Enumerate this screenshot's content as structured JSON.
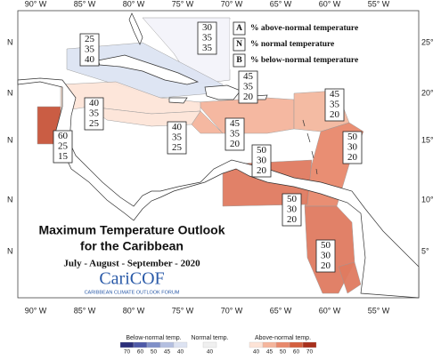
{
  "lon_labels": [
    "90° W",
    "85° W",
    "80° W",
    "75° W",
    "70° W",
    "65° W",
    "60° W",
    "55° W"
  ],
  "lat_labels": [
    "25°",
    "20°",
    "15°",
    "10°",
    "5°"
  ],
  "lat_left": "N",
  "legend": [
    {
      "key": "A",
      "text": "% above-normal temperature"
    },
    {
      "key": "N",
      "text": "% normal temperature"
    },
    {
      "key": "B",
      "text": "% below-normal temperature"
    }
  ],
  "regions": [
    {
      "values": [
        30,
        35,
        35
      ],
      "color": "#f4f4fa"
    },
    {
      "values": [
        25,
        35,
        40
      ],
      "color": "#dde4f3"
    },
    {
      "values": [
        45,
        35,
        20
      ],
      "color": "#f5b59c"
    },
    {
      "values": [
        45,
        35,
        20
      ],
      "color": "#f4b89f"
    },
    {
      "values": [
        40,
        35,
        25
      ],
      "color": "#fde5d9"
    },
    {
      "values": [
        45,
        35,
        20
      ],
      "color": "#f5b59c"
    },
    {
      "values": [
        40,
        35,
        25
      ],
      "color": "#fde5d9"
    },
    {
      "values": [
        60,
        25,
        15
      ],
      "color": "#c8553a"
    },
    {
      "values": [
        50,
        30,
        20
      ],
      "color": "#e8896c"
    },
    {
      "values": [
        50,
        30,
        20
      ],
      "color": "#e07b60"
    },
    {
      "values": [
        50,
        30,
        20
      ],
      "color": "#e07b60"
    },
    {
      "values": [
        50,
        30,
        20
      ],
      "color": "#e07b60"
    }
  ],
  "title": [
    "Maximum Temperature Outlook",
    "for the Caribbean"
  ],
  "season": "July - August - September - 2020",
  "logo": "CariCOF",
  "logo_sub": "CARIBBEAN CLIMATE OUTLOOK FORUM",
  "colorbar": [
    {
      "label": "Below-normal temp.",
      "ticks": [
        70,
        60,
        50,
        45,
        40
      ],
      "colors": [
        "#2b2f7a",
        "#4e5aa8",
        "#8090c8",
        "#b4bfe0",
        "#dde3f2"
      ]
    },
    {
      "label": "Normal temp.",
      "ticks": [
        40
      ],
      "colors": [
        "#f0f0f0"
      ]
    },
    {
      "label": "Above-normal temp.",
      "ticks": [
        40,
        45,
        50,
        60,
        70
      ],
      "colors": [
        "#fde3d6",
        "#f5b59c",
        "#e8896c",
        "#d4603f",
        "#a8301c"
      ]
    }
  ]
}
